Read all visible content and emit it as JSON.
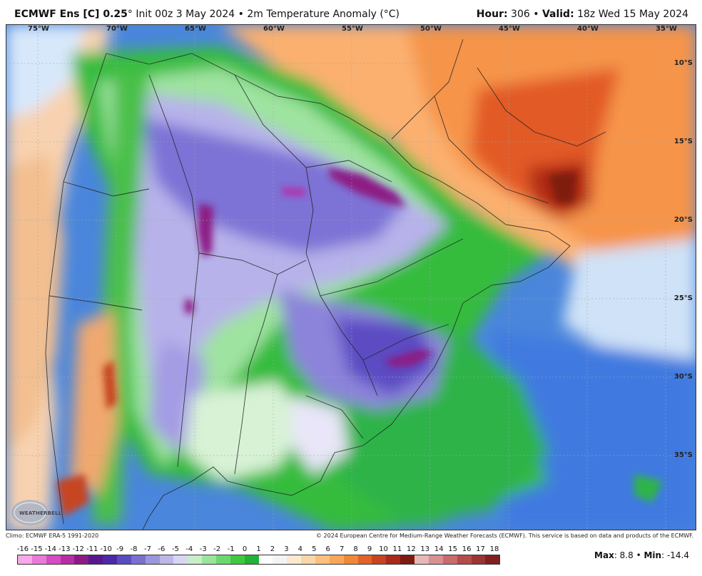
{
  "header": {
    "model": "ECMWF Ens [C] 0.25",
    "degree": "°",
    "init": " Init 00z 3 May 2024",
    "bullet": " • ",
    "field": "2m Temperature Anomaly (°C)",
    "hour_label": "Hour:",
    "hour_value": " 306",
    "valid_label": "Valid:",
    "valid_value": " 18z Wed 15 May 2024"
  },
  "map": {
    "longitude_labels": [
      "75°W",
      "70°W",
      "65°W",
      "60°W",
      "55°W",
      "50°W",
      "45°W",
      "40°W",
      "35°W"
    ],
    "latitude_labels": [
      "10°S",
      "15°S",
      "20°S",
      "25°S",
      "30°S",
      "35°S"
    ],
    "logo_text": "WEATHERBELL"
  },
  "footer": {
    "climo": "Climo: ECMWF ERA-5 1991-2020",
    "copyright": "© 2024 European Centre for Medium-Range Weather Forecasts (ECMWF). This service is based on data and products of the ECMWF."
  },
  "colorbar": {
    "labels": [
      "-16",
      "-15",
      "-14",
      "-13",
      "-12",
      "-11",
      "-10",
      "-9",
      "-8",
      "-7",
      "-6",
      "-5",
      "-4",
      "-3",
      "-2",
      "-1",
      "0",
      "1",
      "2",
      "3",
      "4",
      "5",
      "6",
      "7",
      "8",
      "9",
      "10",
      "11",
      "12",
      "13",
      "14",
      "15",
      "16",
      "17",
      "18"
    ],
    "colors": [
      "#f7a8e8",
      "#e97ad8",
      "#d64cc4",
      "#b82ca8",
      "#8c1a84",
      "#5a1690",
      "#4a2aa8",
      "#5a4cc0",
      "#7a70d0",
      "#9c96dc",
      "#bdb8ea",
      "#d8d6f4",
      "#c8eec8",
      "#9be49b",
      "#6cd86c",
      "#40c840",
      "#22b23a",
      "#fdfdfd",
      "#f4f4f4",
      "#fde8d0",
      "#fcd6a8",
      "#fbc080",
      "#f8a658",
      "#f08838",
      "#e06428",
      "#c84420",
      "#a82a18",
      "#7e1a10",
      "#e8b8b8",
      "#d89090",
      "#c86c6c",
      "#b44c4c",
      "#9c3434",
      "#802020"
    ]
  },
  "stats": {
    "max_label": "Max",
    "max_value": ": 8.8",
    "separator": " • ",
    "min_label": "Min",
    "min_value": ": -14.4"
  }
}
